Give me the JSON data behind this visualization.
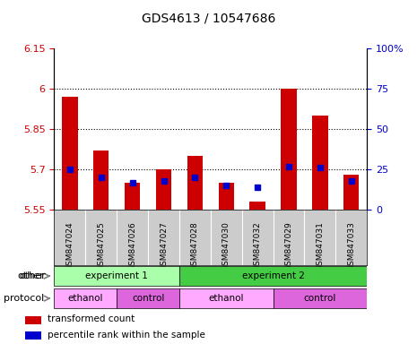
{
  "title": "GDS4613 / 10547686",
  "samples": [
    "GSM847024",
    "GSM847025",
    "GSM847026",
    "GSM847027",
    "GSM847028",
    "GSM847030",
    "GSM847032",
    "GSM847029",
    "GSM847031",
    "GSM847033"
  ],
  "transformed_count": [
    5.97,
    5.77,
    5.65,
    5.7,
    5.75,
    5.65,
    5.58,
    6.0,
    5.9,
    5.68
  ],
  "percentile_rank": [
    25,
    20,
    17,
    18,
    20,
    15,
    14,
    27,
    26,
    18
  ],
  "ylim_left": [
    5.55,
    6.15
  ],
  "ylim_right": [
    0,
    100
  ],
  "yticks_left": [
    5.55,
    5.7,
    5.85,
    6.0,
    6.15
  ],
  "ytick_labels_left": [
    "5.55",
    "5.7",
    "5.85",
    "6",
    "6.15"
  ],
  "yticks_right": [
    0,
    25,
    50,
    75,
    100
  ],
  "ytick_labels_right": [
    "0",
    "25",
    "50",
    "75",
    "100%"
  ],
  "hlines": [
    5.7,
    5.85,
    6.0
  ],
  "bar_color": "#cc0000",
  "dot_color": "#0000cc",
  "bar_width": 0.5,
  "base_value": 5.55,
  "other_row": [
    {
      "label": "experiment 1",
      "start": 0,
      "end": 4,
      "color": "#aaffaa"
    },
    {
      "label": "experiment 2",
      "start": 4,
      "end": 10,
      "color": "#44cc44"
    }
  ],
  "protocol_row": [
    {
      "label": "ethanol",
      "start": 0,
      "end": 2,
      "color": "#ffaaff"
    },
    {
      "label": "control",
      "start": 2,
      "end": 4,
      "color": "#dd66dd"
    },
    {
      "label": "ethanol",
      "start": 4,
      "end": 7,
      "color": "#ffaaff"
    },
    {
      "label": "control",
      "start": 7,
      "end": 10,
      "color": "#dd66dd"
    }
  ],
  "legend_items": [
    {
      "label": "transformed count",
      "color": "#cc0000"
    },
    {
      "label": "percentile rank within the sample",
      "color": "#0000cc"
    }
  ],
  "other_label": "other",
  "protocol_label": "protocol",
  "left_axis_color": "#cc0000",
  "right_axis_color": "#0000cc",
  "sample_bg_color": "#cccccc"
}
